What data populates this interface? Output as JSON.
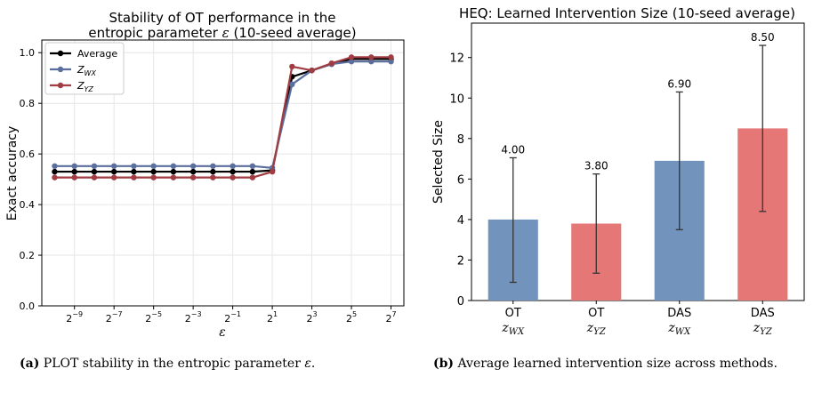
{
  "chart_data": [
    {
      "type": "line",
      "title_line1": "Stability of OT performance in the",
      "title_line2_prefix": "entropic parameter ",
      "title_symbol": "ε",
      "title_line2_suffix": " (10-seed average)",
      "xlabel": "ε",
      "ylabel": "Exact accuracy",
      "x_exponents": [
        -10,
        -9,
        -8,
        -7,
        -6,
        -5,
        -4,
        -3,
        -2,
        -1,
        0,
        1,
        2,
        3,
        4,
        5,
        6,
        7
      ],
      "x_tick_base": "2",
      "x_tick_exponents": [
        -9,
        -7,
        -5,
        -3,
        -1,
        1,
        3,
        5,
        7
      ],
      "y_ticks": [
        "0.0",
        "0.2",
        "0.4",
        "0.6",
        "0.8",
        "1.0"
      ],
      "ylim": [
        0,
        1.05
      ],
      "grid": true,
      "legend_position": "top-left",
      "series": [
        {
          "name": "Average",
          "color": "#000000",
          "values": [
            0.53,
            0.53,
            0.53,
            0.53,
            0.53,
            0.53,
            0.53,
            0.53,
            0.53,
            0.53,
            0.53,
            0.535,
            0.905,
            0.93,
            0.955,
            0.975,
            0.975,
            0.975
          ]
        },
        {
          "name": "Z",
          "name_sub": "WX",
          "color": "#5b6f9e",
          "values": [
            0.552,
            0.552,
            0.552,
            0.552,
            0.552,
            0.552,
            0.552,
            0.552,
            0.552,
            0.552,
            0.552,
            0.545,
            0.875,
            0.93,
            0.955,
            0.965,
            0.965,
            0.965
          ]
        },
        {
          "name": "Z",
          "name_sub": "YZ",
          "color": "#a03c42",
          "values": [
            0.507,
            0.507,
            0.507,
            0.507,
            0.507,
            0.507,
            0.507,
            0.507,
            0.507,
            0.507,
            0.507,
            0.53,
            0.945,
            0.93,
            0.958,
            0.982,
            0.982,
            0.982
          ]
        }
      ]
    },
    {
      "type": "bar",
      "title": "HEQ: Learned Intervention Size (10-seed average)",
      "ylabel": "Selected Size",
      "xlabel": "",
      "y_ticks": [
        "0",
        "2",
        "4",
        "6",
        "8",
        "10",
        "12"
      ],
      "ylim": [
        0,
        13.7
      ],
      "grid": false,
      "categories": [
        {
          "method": "OT",
          "var": "z",
          "sub": "WX",
          "value": 4.0,
          "label": "4.00",
          "err_low": 0.9,
          "err_high": 7.05,
          "color": "#7294bc"
        },
        {
          "method": "OT",
          "var": "z",
          "sub": "YZ",
          "value": 3.8,
          "label": "3.80",
          "err_low": 1.35,
          "err_high": 6.25,
          "color": "#e57777"
        },
        {
          "method": "DAS",
          "var": "z",
          "sub": "WX",
          "value": 6.9,
          "label": "6.90",
          "err_low": 3.5,
          "err_high": 10.3,
          "color": "#7294bc"
        },
        {
          "method": "DAS",
          "var": "z",
          "sub": "YZ",
          "value": 8.5,
          "label": "8.50",
          "err_low": 4.4,
          "err_high": 12.6,
          "color": "#e57777"
        }
      ]
    }
  ],
  "captions": [
    {
      "tag": "(a)",
      "text": "PLOT stability in the entropic parameter ",
      "symbol": "ε",
      "end": "."
    },
    {
      "tag": "(b)",
      "text": "Average learned intervention size across methods.",
      "symbol": "",
      "end": ""
    }
  ]
}
